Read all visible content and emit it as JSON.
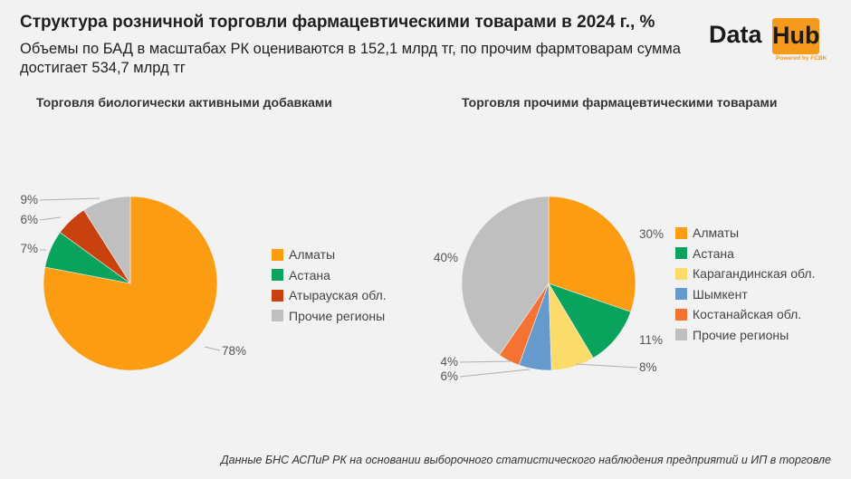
{
  "header": {
    "title": "Структура розничной торговли фармацевтическими товарами в 2024 г., %",
    "subtitle": "Объемы по БАД в масштабах РК оцениваются в 152,1 млрд тг, по прочим фармтоварам сумма достигает 534,7 млрд тг"
  },
  "logo": {
    "word1": "Data",
    "word2": "Hub",
    "powered": "Powered by FCBK",
    "accent": "#f59a1c"
  },
  "footnote": "Данные БНС АСПиР РК на основании выборочного статистического наблюдения предприятий и ИП в торговле",
  "chart_data": [
    {
      "type": "pie",
      "title": "Торговля биологически активными добавками",
      "categories": [
        "Алматы",
        "Астана",
        "Атырауская обл.",
        "Прочие регионы"
      ],
      "values": [
        78,
        7,
        6,
        9
      ],
      "labels": [
        "78%",
        "7%",
        "6%",
        "9%"
      ],
      "colors": [
        "#fb9c12",
        "#0aa35d",
        "#c8410f",
        "#bfbfbf"
      ],
      "legend": "right"
    },
    {
      "type": "pie",
      "title": "Торговля прочими фармацевтическими товарами",
      "categories": [
        "Алматы",
        "Астана",
        "Карагандинская обл.",
        "Шымкент",
        "Костанайская обл.",
        "Прочие регионы"
      ],
      "values": [
        30,
        11,
        8,
        6,
        4,
        40
      ],
      "labels": [
        "30%",
        "11%",
        "8%",
        "6%",
        "4%",
        "40%"
      ],
      "colors": [
        "#fb9c12",
        "#0aa35d",
        "#fbdb6a",
        "#6699cc",
        "#f57232",
        "#bfbfbf"
      ],
      "legend": "right"
    }
  ]
}
